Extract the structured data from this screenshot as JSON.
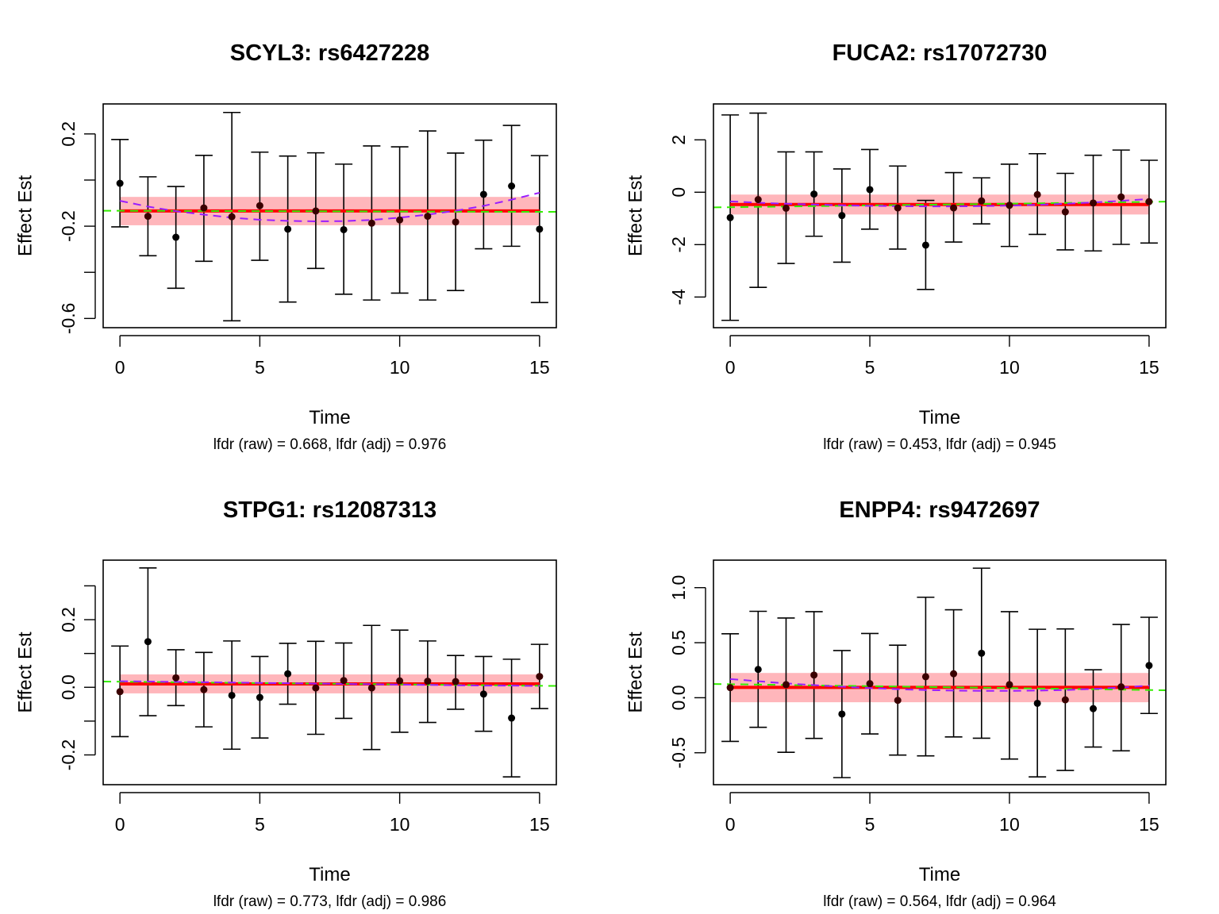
{
  "chart_data": [
    {
      "type": "scatter",
      "title": "SCYL3: rs6427228",
      "xlabel": "Time",
      "ylabel": "Effect Est",
      "subtitle": "lfdr (raw) = 0.668, lfdr (adj) = 0.976",
      "xlim": [
        -0.6,
        15.6
      ],
      "ylim": [
        -0.64,
        0.33
      ],
      "xticks": [
        0,
        5,
        10,
        15
      ],
      "yticks": [
        -0.6,
        -0.4,
        -0.2,
        0.0,
        0.2
      ],
      "ytick_labels": [
        "-0.6",
        "",
        "-0.2",
        "",
        "0.2"
      ],
      "x": [
        0,
        1,
        2,
        3,
        4,
        5,
        6,
        7,
        8,
        9,
        10,
        11,
        12,
        13,
        14,
        15
      ],
      "estimate": [
        -0.014,
        -0.157,
        -0.248,
        -0.121,
        -0.159,
        -0.111,
        -0.213,
        -0.134,
        -0.215,
        -0.187,
        -0.173,
        -0.157,
        -0.182,
        -0.062,
        -0.026,
        -0.213
      ],
      "ci_upper": [
        0.176,
        0.014,
        -0.028,
        0.107,
        0.293,
        0.121,
        0.104,
        0.118,
        0.069,
        0.148,
        0.144,
        0.213,
        0.117,
        0.173,
        0.237,
        0.106
      ],
      "ci_lower": [
        -0.203,
        -0.328,
        -0.469,
        -0.352,
        -0.61,
        -0.348,
        -0.529,
        -0.383,
        -0.495,
        -0.52,
        -0.49,
        -0.52,
        -0.479,
        -0.298,
        -0.287,
        -0.531
      ],
      "pooled_line": -0.134,
      "pooled_band": [
        -0.196,
        -0.073
      ],
      "trend_green": [
        -0.133,
        -0.138
      ],
      "smooth_purple": [
        -0.09,
        -0.115,
        -0.135,
        -0.15,
        -0.163,
        -0.172,
        -0.177,
        -0.179,
        -0.178,
        -0.173,
        -0.163,
        -0.15,
        -0.133,
        -0.112,
        -0.085,
        -0.055
      ]
    },
    {
      "type": "scatter",
      "title": "FUCA2: rs17072730",
      "xlabel": "Time",
      "ylabel": "Effect Est",
      "subtitle": "lfdr (raw) = 0.453, lfdr (adj) = 0.945",
      "xlim": [
        -0.6,
        15.6
      ],
      "ylim": [
        -5.17,
        3.37
      ],
      "xticks": [
        0,
        5,
        10,
        15
      ],
      "yticks": [
        -4,
        -2,
        0,
        2
      ],
      "ytick_labels": [
        "-4",
        "-2",
        "0",
        "2"
      ],
      "x": [
        0,
        1,
        2,
        3,
        4,
        5,
        6,
        7,
        8,
        9,
        10,
        11,
        12,
        13,
        14,
        15
      ],
      "estimate": [
        -0.97,
        -0.28,
        -0.61,
        -0.07,
        -0.89,
        0.1,
        -0.6,
        -2.02,
        -0.6,
        -0.33,
        -0.5,
        -0.09,
        -0.75,
        -0.41,
        -0.18,
        -0.36
      ],
      "ci_upper": [
        2.95,
        3.02,
        1.54,
        1.54,
        0.89,
        1.63,
        1.0,
        -0.31,
        0.75,
        0.55,
        1.07,
        1.47,
        0.72,
        1.41,
        1.61,
        1.22
      ],
      "ci_lower": [
        -4.89,
        -3.63,
        -2.72,
        -1.68,
        -2.67,
        -1.41,
        -2.17,
        -3.71,
        -1.9,
        -1.21,
        -2.07,
        -1.61,
        -2.2,
        -2.24,
        -1.99,
        -1.94
      ],
      "pooled_line": -0.47,
      "pooled_band": [
        -0.85,
        -0.09
      ],
      "trend_green": [
        -0.58,
        -0.36
      ],
      "smooth_purple": [
        -0.35,
        -0.4,
        -0.44,
        -0.47,
        -0.5,
        -0.52,
        -0.53,
        -0.54,
        -0.54,
        -0.53,
        -0.51,
        -0.48,
        -0.44,
        -0.39,
        -0.33,
        -0.26
      ]
    },
    {
      "type": "scatter",
      "title": "STPG1: rs12087313",
      "xlabel": "Time",
      "ylabel": "Effect Est",
      "subtitle": "lfdr (raw) = 0.773, lfdr (adj) = 0.986",
      "xlim": [
        -0.6,
        15.6
      ],
      "ylim": [
        -0.288,
        0.376
      ],
      "xticks": [
        0,
        5,
        10,
        15
      ],
      "yticks": [
        -0.2,
        -0.1,
        0.0,
        0.1,
        0.2,
        0.3
      ],
      "ytick_labels": [
        "-0.2",
        "",
        "0.0",
        "",
        "0.2",
        ""
      ],
      "x": [
        0,
        1,
        2,
        3,
        4,
        5,
        6,
        7,
        8,
        9,
        10,
        11,
        12,
        13,
        14,
        15
      ],
      "estimate": [
        -0.013,
        0.135,
        0.028,
        -0.007,
        -0.024,
        -0.03,
        0.04,
        -0.002,
        0.02,
        -0.002,
        0.019,
        0.018,
        0.017,
        -0.02,
        -0.091,
        0.032
      ],
      "ci_upper": [
        0.122,
        0.353,
        0.111,
        0.103,
        0.137,
        0.091,
        0.13,
        0.136,
        0.131,
        0.183,
        0.169,
        0.137,
        0.094,
        0.091,
        0.083,
        0.127
      ],
      "ci_lower": [
        -0.146,
        -0.084,
        -0.054,
        -0.117,
        -0.183,
        -0.15,
        -0.05,
        -0.139,
        -0.092,
        -0.184,
        -0.133,
        -0.104,
        -0.065,
        -0.13,
        -0.265,
        -0.063
      ],
      "pooled_line": 0.01,
      "pooled_band": [
        -0.018,
        0.038
      ],
      "trend_green": [
        0.017,
        0.004
      ],
      "smooth_purple": [
        0.018,
        0.017,
        0.016,
        0.015,
        0.014,
        0.013,
        0.012,
        0.011,
        0.01,
        0.009,
        0.008,
        0.007,
        0.006,
        0.005,
        0.005,
        0.004
      ]
    },
    {
      "type": "scatter",
      "title": "ENPP4: rs9472697",
      "xlabel": "Time",
      "ylabel": "Effect Est",
      "subtitle": "lfdr (raw) = 0.564, lfdr (adj) = 0.964",
      "xlim": [
        -0.6,
        15.6
      ],
      "ylim": [
        -0.79,
        1.25
      ],
      "xticks": [
        0,
        5,
        10,
        15
      ],
      "yticks": [
        -0.5,
        0.0,
        0.5,
        1.0
      ],
      "ytick_labels": [
        "-0.5",
        "0.0",
        "0.5",
        "1.0"
      ],
      "x": [
        0,
        1,
        2,
        3,
        4,
        5,
        6,
        7,
        8,
        9,
        10,
        11,
        12,
        13,
        14,
        15
      ],
      "estimate": [
        0.092,
        0.257,
        0.119,
        0.206,
        -0.148,
        0.128,
        -0.024,
        0.191,
        0.218,
        0.404,
        0.119,
        -0.051,
        -0.019,
        -0.099,
        0.099,
        0.293
      ],
      "ci_upper": [
        0.581,
        0.785,
        0.724,
        0.782,
        0.429,
        0.584,
        0.477,
        0.913,
        0.799,
        1.177,
        0.782,
        0.622,
        0.625,
        0.254,
        0.666,
        0.731
      ],
      "ci_lower": [
        -0.397,
        -0.269,
        -0.496,
        -0.37,
        -0.726,
        -0.329,
        -0.521,
        -0.528,
        -0.356,
        -0.368,
        -0.557,
        -0.719,
        -0.661,
        -0.448,
        -0.482,
        -0.143
      ],
      "pooled_line": 0.094,
      "pooled_band": [
        -0.041,
        0.225
      ],
      "trend_green": [
        0.125,
        0.068
      ],
      "smooth_purple": [
        0.17,
        0.15,
        0.13,
        0.115,
        0.1,
        0.088,
        0.078,
        0.07,
        0.065,
        0.062,
        0.062,
        0.065,
        0.07,
        0.08,
        0.093,
        0.11
      ]
    }
  ],
  "colors": {
    "points": "#000000",
    "errorbars": "#000000",
    "pooled_line": "#ff0000",
    "pooled_band": "#ffb6bb",
    "trend_green": "#33ee00",
    "smooth_purple": "#9a1dff",
    "frame": "#000000"
  }
}
